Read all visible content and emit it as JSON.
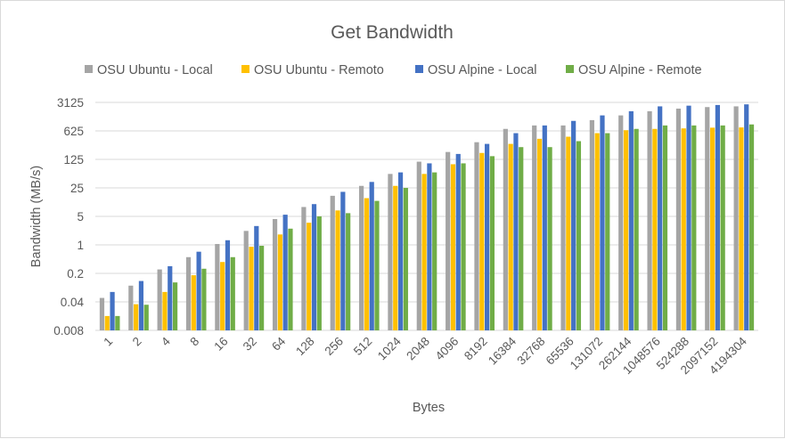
{
  "chart_data": {
    "type": "bar",
    "title": "Get Bandwidth",
    "xlabel": "Bytes",
    "ylabel": "Bandwidth (MB/s)",
    "yscale": "log",
    "yticks": [
      "0.008",
      "0.04",
      "0.2",
      "1",
      "5",
      "25",
      "125",
      "625",
      "3125"
    ],
    "ylim": [
      0.008,
      3125
    ],
    "grid": "horizontal",
    "legend": "top",
    "categories": [
      "1",
      "2",
      "4",
      "8",
      "16",
      "32",
      "64",
      "128",
      "256",
      "512",
      "1024",
      "2048",
      "4096",
      "8192",
      "16384",
      "32768",
      "65536",
      "131072",
      "262144",
      "1048576",
      "524288",
      "2097152",
      "4194304"
    ],
    "series": [
      {
        "name": "OSU Ubuntu - Local",
        "color": "#a5a5a5",
        "values": [
          0.05,
          0.1,
          0.25,
          0.5,
          1.05,
          2.2,
          4.3,
          8.5,
          16,
          28,
          55,
          110,
          190,
          330,
          700,
          850,
          850,
          1150,
          1500,
          1900,
          2200,
          2400,
          2500
        ]
      },
      {
        "name": "OSU Ubuntu - Remoto",
        "color": "#ffc000",
        "values": [
          0.018,
          0.035,
          0.07,
          0.18,
          0.38,
          0.9,
          1.8,
          3.5,
          7,
          14,
          28,
          55,
          95,
          180,
          300,
          400,
          450,
          550,
          650,
          700,
          720,
          750,
          760
        ]
      },
      {
        "name": "OSU Alpine - Local",
        "color": "#4472c4",
        "values": [
          0.07,
          0.13,
          0.3,
          0.68,
          1.3,
          2.9,
          5.5,
          10,
          20,
          35,
          60,
          100,
          170,
          300,
          550,
          850,
          1100,
          1500,
          1900,
          2500,
          2600,
          2700,
          2800
        ]
      },
      {
        "name": "OSU Alpine - Remote",
        "color": "#70ad47",
        "values": [
          0.018,
          0.034,
          0.12,
          0.26,
          0.5,
          0.95,
          2.5,
          5,
          6,
          12,
          25,
          60,
          100,
          150,
          250,
          250,
          350,
          550,
          700,
          850,
          850,
          850,
          900
        ]
      }
    ]
  }
}
